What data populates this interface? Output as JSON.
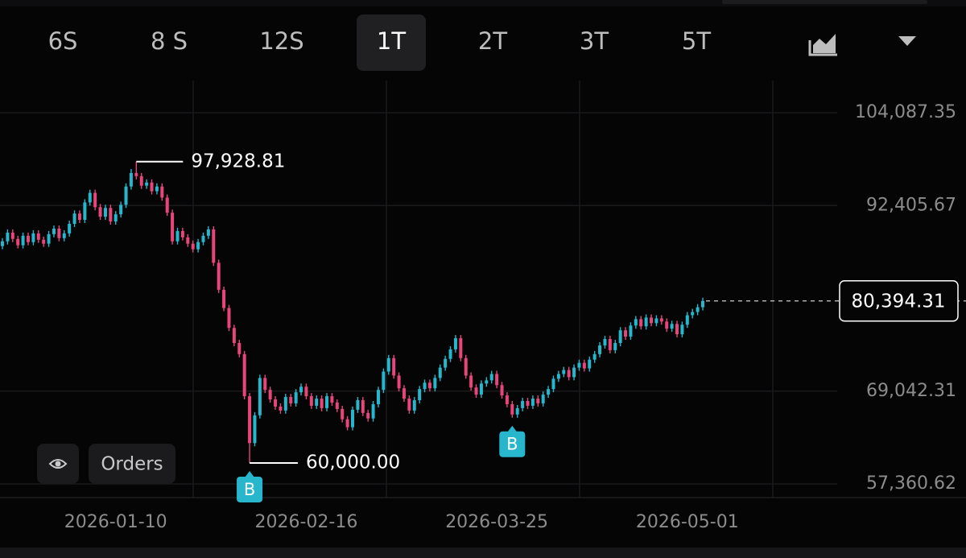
{
  "toolbar": {
    "intervals": [
      {
        "label": "6S"
      },
      {
        "label": "8 S"
      },
      {
        "label": "12S"
      },
      {
        "label": "1T",
        "selected": true
      },
      {
        "label": "2T"
      },
      {
        "label": "3T"
      },
      {
        "label": "5T"
      }
    ]
  },
  "buttons": {
    "orders": "Orders"
  },
  "chart_data": {
    "type": "candlestick",
    "up_color": "#27b6cb",
    "down_color": "#e8457a",
    "open": [
      87300,
      87900,
      89000,
      88200,
      87400,
      88600,
      87800,
      88900,
      88100,
      87600,
      88800,
      89500,
      88300,
      88900,
      90100,
      91400,
      90600,
      92800,
      94000,
      92200,
      91000,
      92100,
      90400,
      91300,
      92500,
      94800,
      96500,
      96100,
      94900,
      95300,
      94200,
      94800,
      93400,
      91500,
      87900,
      89200,
      88400,
      87600,
      86900,
      87800,
      88600,
      89400,
      85200,
      81800,
      79500,
      77000,
      75100,
      73700,
      68400,
      62500,
      66000,
      70700,
      69200,
      68000,
      67100,
      66600,
      68300,
      67500,
      68900,
      69600,
      68400,
      67200,
      68100,
      66900,
      68400,
      67600,
      66800,
      65500,
      64500,
      66700,
      67900,
      66300,
      65600,
      67400,
      69200,
      71500,
      73200,
      71000,
      69400,
      68100,
      66600,
      67900,
      69300,
      70100,
      69400,
      70700,
      72000,
      73100,
      74300,
      75700,
      73200,
      71000,
      69500,
      68600,
      70000,
      70400,
      71200,
      69800,
      68500,
      67400,
      66100,
      66900,
      67800,
      67200,
      68100,
      67500,
      68600,
      69300,
      70600,
      71200,
      71700,
      70800,
      72000,
      72600,
      71900,
      73000,
      73700,
      74800,
      75600,
      74200,
      75100,
      76700,
      75900,
      77300,
      78100,
      77200,
      78300,
      77600,
      78200,
      77800,
      76900,
      77500,
      76200,
      77400,
      78600,
      79000,
      79600
    ],
    "high": [
      88300,
      89400,
      89400,
      88600,
      89000,
      89000,
      89300,
      89300,
      88500,
      89200,
      89900,
      89900,
      89300,
      90500,
      91800,
      91800,
      93200,
      94400,
      94400,
      92600,
      92500,
      92500,
      91700,
      92900,
      95200,
      97000,
      97928.81,
      96500,
      95700,
      95700,
      95200,
      95200,
      93800,
      91900,
      89600,
      89600,
      88800,
      88000,
      88200,
      89000,
      89800,
      89800,
      85600,
      82200,
      79900,
      77400,
      75500,
      74100,
      68800,
      66400,
      71100,
      71100,
      69600,
      68400,
      67500,
      68700,
      68700,
      69300,
      70000,
      70000,
      68800,
      68500,
      68500,
      68800,
      68800,
      68000,
      67200,
      65900,
      67100,
      68300,
      68300,
      66700,
      67800,
      69600,
      71900,
      73600,
      73600,
      71400,
      69800,
      68500,
      68300,
      69700,
      70500,
      70500,
      71100,
      72400,
      73500,
      74700,
      76100,
      76100,
      73600,
      71400,
      69900,
      70400,
      70800,
      71600,
      71600,
      70200,
      68900,
      67800,
      67300,
      68200,
      68200,
      68500,
      68500,
      69000,
      69700,
      71000,
      71600,
      72100,
      72100,
      72400,
      73000,
      73000,
      73400,
      74100,
      75200,
      76000,
      76000,
      75500,
      77100,
      77100,
      77700,
      78500,
      78500,
      78700,
      78700,
      78600,
      78600,
      78200,
      77900,
      77900,
      77800,
      79000,
      79400,
      80000,
      80800
    ],
    "low": [
      86900,
      87500,
      87800,
      87000,
      87000,
      87400,
      87400,
      87700,
      87200,
      87200,
      88400,
      87900,
      87900,
      88500,
      89700,
      90200,
      90200,
      92400,
      91800,
      90600,
      90600,
      90000,
      90000,
      90900,
      92100,
      94400,
      95700,
      94500,
      94500,
      93800,
      93800,
      93000,
      91100,
      87500,
      87500,
      88000,
      87200,
      86500,
      86500,
      87400,
      88200,
      84800,
      81400,
      79100,
      76600,
      74700,
      73300,
      68000,
      60000,
      62100,
      65600,
      68800,
      67600,
      66700,
      66200,
      66200,
      67100,
      67100,
      68500,
      68000,
      66800,
      66800,
      66500,
      66500,
      67200,
      66400,
      65100,
      64100,
      64100,
      66300,
      65900,
      65200,
      65200,
      67000,
      68800,
      71100,
      70600,
      69000,
      67700,
      66200,
      66200,
      67500,
      68900,
      69000,
      69000,
      70300,
      71600,
      72700,
      73900,
      72800,
      70600,
      69100,
      68200,
      68200,
      69600,
      70000,
      69400,
      68100,
      67000,
      65700,
      65700,
      66500,
      66800,
      66800,
      67100,
      67100,
      68200,
      68900,
      70200,
      70800,
      70400,
      70400,
      71600,
      71500,
      71500,
      72600,
      73300,
      74400,
      73800,
      73800,
      74700,
      75500,
      75500,
      76900,
      76800,
      76800,
      77200,
      77200,
      77400,
      76500,
      76500,
      75800,
      75800,
      77000,
      78200,
      78600,
      79200
    ],
    "close": [
      87900,
      89000,
      88200,
      87400,
      88600,
      87800,
      88900,
      88100,
      87600,
      88800,
      89500,
      88300,
      88900,
      90100,
      91400,
      90600,
      92800,
      94000,
      92200,
      91000,
      92100,
      90400,
      91300,
      92500,
      94800,
      96500,
      96100,
      94900,
      95300,
      94200,
      94800,
      93400,
      91500,
      87900,
      89200,
      88400,
      87600,
      86900,
      87800,
      88600,
      89400,
      85200,
      81800,
      79500,
      77000,
      75100,
      73700,
      68400,
      62500,
      66000,
      70700,
      69200,
      68000,
      67100,
      66600,
      68300,
      67500,
      68900,
      69600,
      68400,
      67200,
      68100,
      66900,
      68400,
      67600,
      66800,
      65500,
      64500,
      66700,
      67900,
      66300,
      65600,
      67400,
      69200,
      71500,
      73200,
      71000,
      69400,
      68100,
      66600,
      67900,
      69300,
      70100,
      69400,
      70700,
      72000,
      73100,
      74300,
      75700,
      73200,
      71000,
      69500,
      68600,
      70000,
      70400,
      71200,
      69800,
      68500,
      67400,
      66100,
      66900,
      67800,
      67200,
      68100,
      67500,
      68600,
      69300,
      70600,
      71200,
      71700,
      70800,
      72000,
      72600,
      71900,
      73000,
      73700,
      74800,
      75600,
      74200,
      75100,
      76700,
      75900,
      77300,
      78100,
      77200,
      78300,
      77600,
      78200,
      77800,
      76900,
      77500,
      76200,
      77400,
      78600,
      79000,
      79600,
      80394.31
    ],
    "ylim": [
      55638,
      108142
    ],
    "yticks": [
      {
        "value": 104087.35,
        "label": "104,087.35"
      },
      {
        "value": 92405.67,
        "label": "92,405.67"
      },
      {
        "value": 69042.31,
        "label": "69,042.31"
      },
      {
        "value": 57360.62,
        "label": "57,360.62"
      }
    ],
    "xticks": [
      {
        "value": 22,
        "label": "2026-01-10"
      },
      {
        "value": 59,
        "label": "2026-02-16"
      },
      {
        "value": 96,
        "label": "2026-03-25"
      },
      {
        "value": 133,
        "label": "2026-05-01"
      }
    ],
    "high_label": "97,928.81",
    "low_label": "60,000.00",
    "last_price": {
      "value": 80394.31,
      "label": "80,394.31"
    },
    "markers": [
      {
        "label": "B",
        "index": 48
      },
      {
        "label": "B",
        "index": 99
      }
    ]
  }
}
